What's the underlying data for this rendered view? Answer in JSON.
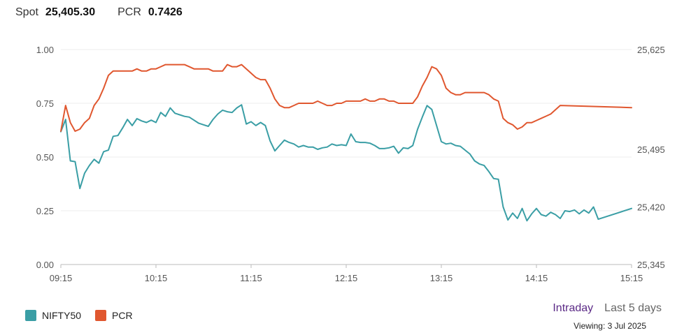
{
  "header": {
    "spot_label": "Spot",
    "spot_value": "25,405.30",
    "pcr_label": "PCR",
    "pcr_value": "0.7426"
  },
  "controls": {
    "range_options": [
      "Intraday",
      "Last 5 days"
    ],
    "active_range": "Intraday",
    "viewing_text": "Viewing: 3 Jul 2025"
  },
  "colors": {
    "nifty": "#3a9ea5",
    "pcr": "#e0572f",
    "active": "#5b2a86"
  },
  "chart_data": {
    "type": "line",
    "x_tick_labels": [
      "09:15",
      "10:15",
      "11:15",
      "12:15",
      "13:15",
      "14:15",
      "15:15"
    ],
    "x_range_minutes": [
      555,
      915
    ],
    "left_axis": {
      "ticks": [
        "0.00",
        "0.25",
        "0.50",
        "0.75",
        "1.00"
      ],
      "range": [
        0,
        1
      ]
    },
    "right_axis": {
      "ticks": [
        "25,345",
        "25,420",
        "25,495",
        "25,625"
      ],
      "range": [
        25345,
        25625
      ]
    },
    "grid": true,
    "legend_position": "bottom-left",
    "series": [
      {
        "name": "NIFTY50",
        "axis": "right",
        "points": [
          [
            "09:15",
            25518
          ],
          [
            "09:18",
            25534
          ],
          [
            "09:21",
            25480
          ],
          [
            "09:24",
            25479
          ],
          [
            "09:27",
            25444
          ],
          [
            "09:30",
            25464
          ],
          [
            "09:33",
            25474
          ],
          [
            "09:36",
            25482
          ],
          [
            "09:39",
            25477
          ],
          [
            "09:42",
            25492
          ],
          [
            "09:45",
            25494
          ],
          [
            "09:48",
            25512
          ],
          [
            "09:51",
            25513
          ],
          [
            "09:54",
            25523
          ],
          [
            "09:57",
            25534
          ],
          [
            "10:00",
            25526
          ],
          [
            "10:03",
            25535
          ],
          [
            "10:06",
            25532
          ],
          [
            "10:09",
            25530
          ],
          [
            "10:12",
            25533
          ],
          [
            "10:15",
            25530
          ],
          [
            "10:18",
            25543
          ],
          [
            "10:21",
            25538
          ],
          [
            "10:24",
            25549
          ],
          [
            "10:27",
            25542
          ],
          [
            "10:30",
            25540
          ],
          [
            "10:33",
            25538
          ],
          [
            "10:36",
            25537
          ],
          [
            "10:39",
            25533
          ],
          [
            "10:42",
            25529
          ],
          [
            "10:45",
            25527
          ],
          [
            "10:48",
            25525
          ],
          [
            "10:51",
            25534
          ],
          [
            "10:54",
            25541
          ],
          [
            "10:57",
            25546
          ],
          [
            "11:00",
            25544
          ],
          [
            "11:03",
            25543
          ],
          [
            "11:06",
            25549
          ],
          [
            "11:09",
            25553
          ],
          [
            "11:12",
            25528
          ],
          [
            "11:15",
            25531
          ],
          [
            "11:18",
            25526
          ],
          [
            "11:21",
            25530
          ],
          [
            "11:24",
            25526
          ],
          [
            "11:27",
            25506
          ],
          [
            "11:30",
            25493
          ],
          [
            "11:33",
            25500
          ],
          [
            "11:36",
            25507
          ],
          [
            "11:39",
            25504
          ],
          [
            "11:42",
            25502
          ],
          [
            "11:45",
            25498
          ],
          [
            "11:48",
            25500
          ],
          [
            "11:51",
            25498
          ],
          [
            "11:54",
            25498
          ],
          [
            "11:57",
            25495
          ],
          [
            "12:00",
            25497
          ],
          [
            "12:03",
            25498
          ],
          [
            "12:06",
            25502
          ],
          [
            "12:09",
            25500
          ],
          [
            "12:12",
            25501
          ],
          [
            "12:15",
            25500
          ],
          [
            "12:18",
            25515
          ],
          [
            "12:21",
            25505
          ],
          [
            "12:24",
            25504
          ],
          [
            "12:27",
            25504
          ],
          [
            "12:30",
            25503
          ],
          [
            "12:33",
            25500
          ],
          [
            "12:36",
            25496
          ],
          [
            "12:39",
            25496
          ],
          [
            "12:42",
            25497
          ],
          [
            "12:45",
            25499
          ],
          [
            "12:48",
            25490
          ],
          [
            "12:51",
            25497
          ],
          [
            "12:54",
            25496
          ],
          [
            "12:57",
            25500
          ],
          [
            "13:00",
            25521
          ],
          [
            "13:03",
            25537
          ],
          [
            "13:06",
            25552
          ],
          [
            "13:09",
            25547
          ],
          [
            "13:12",
            25526
          ],
          [
            "13:15",
            25505
          ],
          [
            "13:18",
            25502
          ],
          [
            "13:21",
            25503
          ],
          [
            "13:24",
            25500
          ],
          [
            "13:27",
            25499
          ],
          [
            "13:30",
            25494
          ],
          [
            "13:33",
            25489
          ],
          [
            "13:36",
            25480
          ],
          [
            "13:39",
            25476
          ],
          [
            "13:42",
            25474
          ],
          [
            "13:45",
            25466
          ],
          [
            "13:48",
            25457
          ],
          [
            "13:51",
            25456
          ],
          [
            "13:54",
            25420
          ],
          [
            "13:57",
            25403
          ],
          [
            "14:00",
            25412
          ],
          [
            "14:03",
            25405
          ],
          [
            "14:06",
            25418
          ],
          [
            "14:09",
            25402
          ],
          [
            "14:12",
            25411
          ],
          [
            "14:15",
            25418
          ],
          [
            "14:18",
            25410
          ],
          [
            "14:21",
            25408
          ],
          [
            "14:24",
            25413
          ],
          [
            "14:27",
            25410
          ],
          [
            "14:30",
            25405
          ],
          [
            "14:33",
            25415
          ],
          [
            "14:36",
            25414
          ],
          [
            "14:39",
            25416
          ],
          [
            "14:42",
            25411
          ],
          [
            "14:45",
            25416
          ],
          [
            "14:48",
            25412
          ],
          [
            "14:51",
            25420
          ],
          [
            "14:54",
            25404
          ],
          [
            "15:15",
            25418
          ]
        ]
      },
      {
        "name": "PCR",
        "axis": "left",
        "points": [
          [
            "09:15",
            0.62
          ],
          [
            "09:18",
            0.74
          ],
          [
            "09:21",
            0.66
          ],
          [
            "09:24",
            0.62
          ],
          [
            "09:27",
            0.63
          ],
          [
            "09:30",
            0.66
          ],
          [
            "09:33",
            0.68
          ],
          [
            "09:36",
            0.74
          ],
          [
            "09:39",
            0.77
          ],
          [
            "09:42",
            0.82
          ],
          [
            "09:45",
            0.88
          ],
          [
            "09:48",
            0.9
          ],
          [
            "09:51",
            0.9
          ],
          [
            "09:54",
            0.9
          ],
          [
            "09:57",
            0.9
          ],
          [
            "10:00",
            0.9
          ],
          [
            "10:03",
            0.91
          ],
          [
            "10:06",
            0.9
          ],
          [
            "10:09",
            0.9
          ],
          [
            "10:12",
            0.91
          ],
          [
            "10:15",
            0.91
          ],
          [
            "10:18",
            0.92
          ],
          [
            "10:21",
            0.93
          ],
          [
            "10:24",
            0.93
          ],
          [
            "10:27",
            0.93
          ],
          [
            "10:30",
            0.93
          ],
          [
            "10:33",
            0.93
          ],
          [
            "10:36",
            0.92
          ],
          [
            "10:39",
            0.91
          ],
          [
            "10:42",
            0.91
          ],
          [
            "10:45",
            0.91
          ],
          [
            "10:48",
            0.91
          ],
          [
            "10:51",
            0.9
          ],
          [
            "10:54",
            0.9
          ],
          [
            "10:57",
            0.9
          ],
          [
            "11:00",
            0.93
          ],
          [
            "11:03",
            0.92
          ],
          [
            "11:06",
            0.92
          ],
          [
            "11:09",
            0.93
          ],
          [
            "11:12",
            0.91
          ],
          [
            "11:15",
            0.89
          ],
          [
            "11:18",
            0.87
          ],
          [
            "11:21",
            0.86
          ],
          [
            "11:24",
            0.86
          ],
          [
            "11:27",
            0.82
          ],
          [
            "11:30",
            0.77
          ],
          [
            "11:33",
            0.74
          ],
          [
            "11:36",
            0.73
          ],
          [
            "11:39",
            0.73
          ],
          [
            "11:42",
            0.74
          ],
          [
            "11:45",
            0.75
          ],
          [
            "11:48",
            0.75
          ],
          [
            "11:51",
            0.75
          ],
          [
            "11:54",
            0.75
          ],
          [
            "11:57",
            0.76
          ],
          [
            "12:00",
            0.75
          ],
          [
            "12:03",
            0.74
          ],
          [
            "12:06",
            0.74
          ],
          [
            "12:09",
            0.75
          ],
          [
            "12:12",
            0.75
          ],
          [
            "12:15",
            0.76
          ],
          [
            "12:18",
            0.76
          ],
          [
            "12:21",
            0.76
          ],
          [
            "12:24",
            0.76
          ],
          [
            "12:27",
            0.77
          ],
          [
            "12:30",
            0.76
          ],
          [
            "12:33",
            0.76
          ],
          [
            "12:36",
            0.77
          ],
          [
            "12:39",
            0.77
          ],
          [
            "12:42",
            0.76
          ],
          [
            "12:45",
            0.76
          ],
          [
            "12:48",
            0.75
          ],
          [
            "12:51",
            0.75
          ],
          [
            "12:54",
            0.75
          ],
          [
            "12:57",
            0.75
          ],
          [
            "13:00",
            0.78
          ],
          [
            "13:03",
            0.83
          ],
          [
            "13:06",
            0.87
          ],
          [
            "13:09",
            0.92
          ],
          [
            "13:12",
            0.91
          ],
          [
            "13:15",
            0.88
          ],
          [
            "13:18",
            0.82
          ],
          [
            "13:21",
            0.8
          ],
          [
            "13:24",
            0.79
          ],
          [
            "13:27",
            0.79
          ],
          [
            "13:30",
            0.8
          ],
          [
            "13:33",
            0.8
          ],
          [
            "13:36",
            0.8
          ],
          [
            "13:39",
            0.8
          ],
          [
            "13:42",
            0.8
          ],
          [
            "13:45",
            0.79
          ],
          [
            "13:48",
            0.77
          ],
          [
            "13:51",
            0.76
          ],
          [
            "13:54",
            0.68
          ],
          [
            "13:57",
            0.66
          ],
          [
            "14:00",
            0.65
          ],
          [
            "14:03",
            0.63
          ],
          [
            "14:06",
            0.64
          ],
          [
            "14:09",
            0.66
          ],
          [
            "14:12",
            0.66
          ],
          [
            "14:15",
            0.67
          ],
          [
            "14:18",
            0.68
          ],
          [
            "14:21",
            0.69
          ],
          [
            "14:24",
            0.7
          ],
          [
            "14:27",
            0.72
          ],
          [
            "14:30",
            0.74
          ],
          [
            "15:15",
            0.73
          ]
        ]
      }
    ]
  }
}
